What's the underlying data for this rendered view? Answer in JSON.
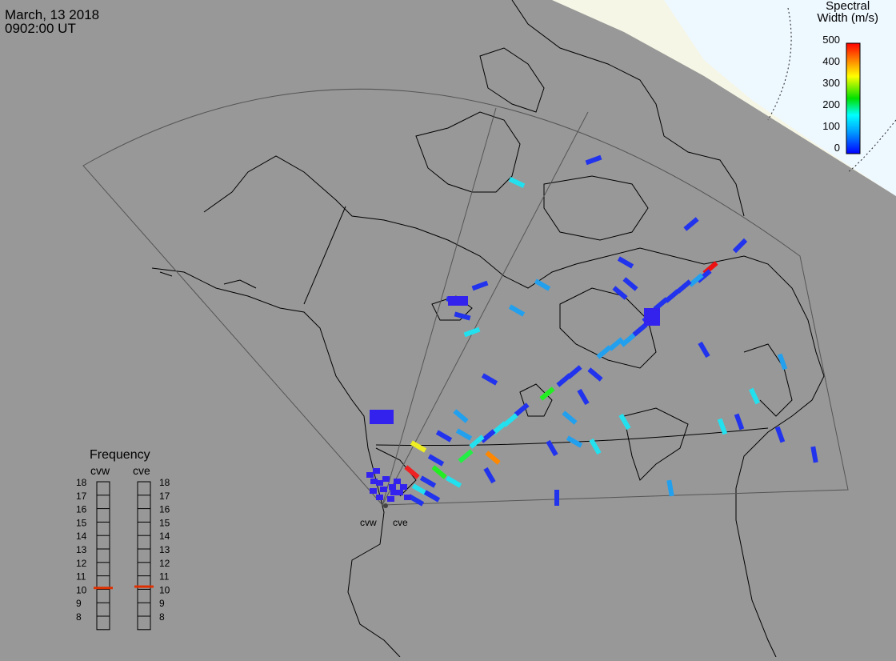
{
  "header": {
    "date": "March, 13 2018",
    "time": "0902:00 UT"
  },
  "colorbar": {
    "title_line1": "Spectral",
    "title_line2": "Width (m/s)",
    "ticks": [
      "500",
      "400",
      "300",
      "200",
      "100",
      "0"
    ],
    "scale": [
      "#0000ff",
      "#00a0ff",
      "#00ffff",
      "#00ff00",
      "#ffff00",
      "#ff8000",
      "#ff0000"
    ]
  },
  "radars": {
    "west_label": "cvw",
    "east_label": "cve"
  },
  "frequency": {
    "title": "Frequency",
    "col_west": "cvw",
    "col_east": "cve",
    "levels": [
      "18",
      "17",
      "16",
      "15",
      "14",
      "13",
      "12",
      "11",
      "10",
      "9",
      "8"
    ],
    "cvw_value": 10.6,
    "cve_value": 10.7,
    "marker_color": "#e03000"
  },
  "colors": {
    "background": "#989898",
    "daylight": "#f6f6e6",
    "pole_region": "#eaf6ff",
    "land_outline": "#000000",
    "fov_outline": "#555555"
  }
}
